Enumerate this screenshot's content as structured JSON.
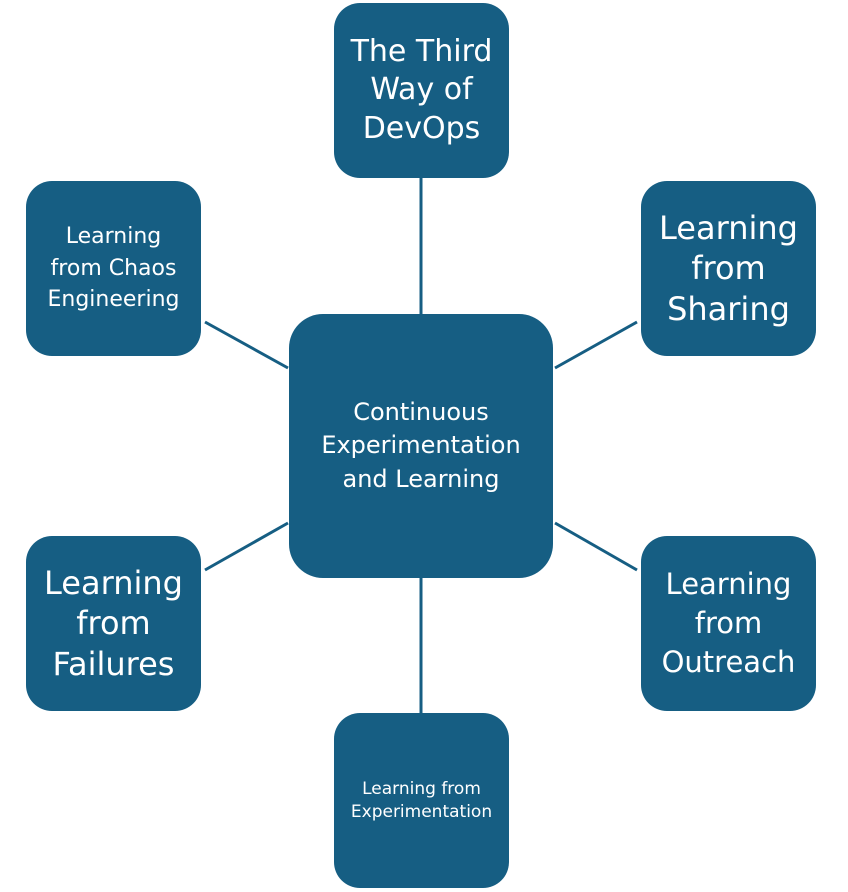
{
  "diagram": {
    "center_label": "Continuous\nExperimentation\nand Learning",
    "nodes": {
      "top": "The Third\nWay of\nDevOps",
      "top_left": "Learning\nfrom Chaos\nEngineering",
      "top_right": "Learning\nfrom\nSharing",
      "bottom_left": "Learning\nfrom\nFailures",
      "bottom_right": "Learning\nfrom\nOutreach",
      "bottom": "Learning from\nExperimentation"
    },
    "colors": {
      "node_fill": "#165e83",
      "connector": "#165e83",
      "text": "#ffffff"
    }
  }
}
